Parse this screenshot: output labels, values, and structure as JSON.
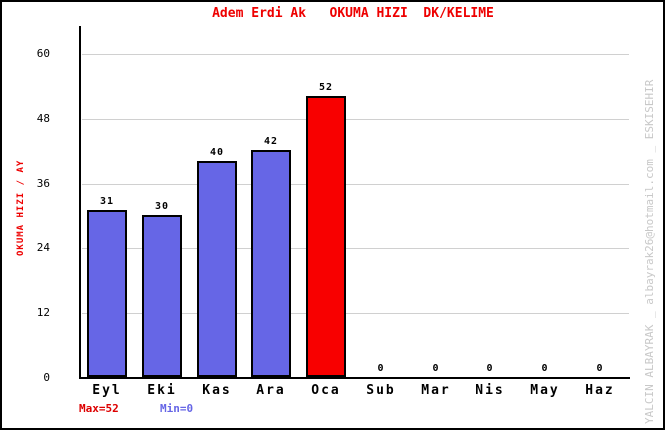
{
  "chart_data": {
    "type": "bar",
    "title": "Adem Erdi Ak   OKUMA HIZI  DK/KELIME",
    "ylabel": "OKUMA HIZI / AY",
    "xlabel": "",
    "categories": [
      "Eyl",
      "Eki",
      "Kas",
      "Ara",
      "Oca",
      "Sub",
      "Mar",
      "Nis",
      "May",
      "Haz"
    ],
    "values": [
      31,
      30,
      40,
      42,
      52,
      0,
      0,
      0,
      0,
      0
    ],
    "bar_colors": [
      "#6666E6",
      "#6666E6",
      "#6666E6",
      "#6666E6",
      "#F80000",
      "#6666E6",
      "#6666E6",
      "#6666E6",
      "#6666E6",
      "#6666E6"
    ],
    "yticks": [
      0,
      12,
      24,
      36,
      48,
      60
    ],
    "ylim": [
      0,
      64
    ],
    "grid": "horizontal-gridlines-at-yticks",
    "legend": "none",
    "max_value": 52,
    "min_value": 0
  },
  "footer": {
    "max_label": "Max=52",
    "min_label": "Min=0"
  },
  "watermark": "YALCIN ALBAYRAK _ albayrak26@hotmail.com _ ESKISEHIR",
  "colors": {
    "title_text": "#EE0000",
    "y_axis_title_text": "#EE0000",
    "bar_blue": "#6666E6",
    "bar_highlight_red": "#F80000",
    "bar_border": "#000000",
    "gridline": "#D0D0D0",
    "axis_line": "#000000",
    "tick_text": "#000000",
    "max_label_text": "#DD0000",
    "min_label_text": "#6666E6",
    "watermark_text": "#C8C8C8",
    "background": "#FFFFFF"
  }
}
